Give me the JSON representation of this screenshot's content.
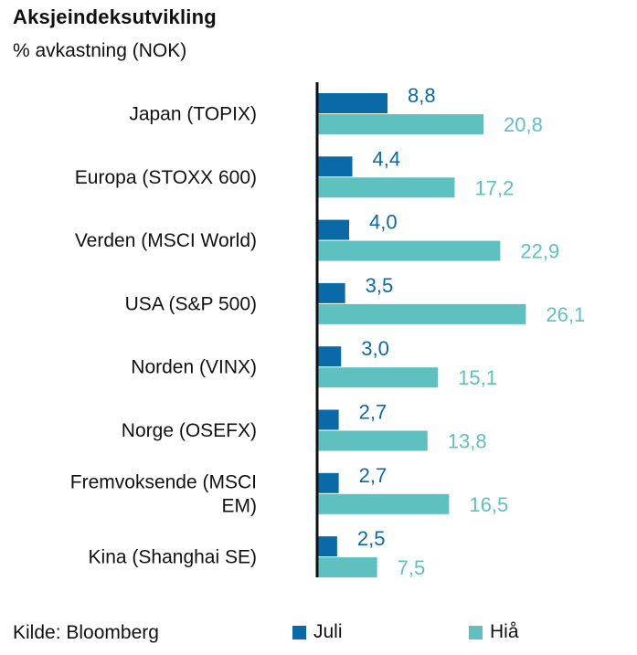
{
  "title": "Aksjeindeksutvikling",
  "subtitle": "% avkastning (NOK)",
  "source": "Kilde: Bloomberg",
  "chart_data": {
    "type": "bar",
    "orientation": "horizontal",
    "categories": [
      [
        "Japan (TOPIX)"
      ],
      [
        "Europa (STOXX 600)"
      ],
      [
        "Verden (MSCI World)"
      ],
      [
        "USA (S&P 500)"
      ],
      [
        "Norden (VINX)"
      ],
      [
        "Norge (OSEFX)"
      ],
      [
        "Fremvoksende (MSCI",
        "EM)"
      ],
      [
        "Kina (Shanghai SE)"
      ]
    ],
    "series": [
      {
        "name": "Juli",
        "color": "#0a6aa8",
        "values": [
          8.8,
          4.4,
          4.0,
          3.5,
          3.0,
          2.7,
          2.7,
          2.5
        ],
        "labels": [
          "8,8",
          "4,4",
          "4,0",
          "3,5",
          "3,0",
          "2,7",
          "2,7",
          "2,5"
        ]
      },
      {
        "name": "Hiå",
        "color": "#5ec0bf",
        "values": [
          20.8,
          17.2,
          22.9,
          26.1,
          15.1,
          13.8,
          16.5,
          7.5
        ],
        "labels": [
          "20,8",
          "17,2",
          "22,9",
          "26,1",
          "15,1",
          "13,8",
          "16,5",
          "7,5"
        ]
      }
    ],
    "xlim": [
      0,
      30
    ],
    "axis_color": "#111111",
    "grid": false,
    "legend_position": "bottom"
  }
}
